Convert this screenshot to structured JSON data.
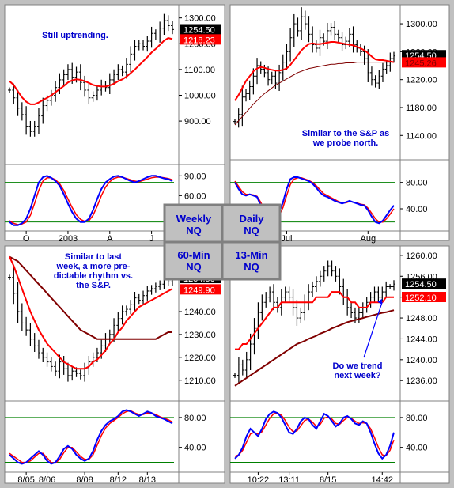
{
  "chart_data": [
    {
      "type": "line",
      "panel": "weekly",
      "title": "Weekly NQ",
      "annotation": "Still uptrending.",
      "price_ticks": [
        900,
        1000,
        1100,
        1200,
        1300
      ],
      "price_tick_labels": [
        "900.00",
        "1000.00",
        "1100.00",
        "1200.00",
        "1300.00"
      ],
      "ylim": [
        750,
        1345
      ],
      "current_price": {
        "value": 1254.5,
        "label": "1254.50"
      },
      "ma_price": {
        "value": 1218.23,
        "label": "1218.23"
      },
      "osc_ticks": [
        60,
        90
      ],
      "osc_tick_labels": [
        "60.00",
        "90.00"
      ],
      "osc_ylim": [
        10,
        100
      ],
      "osc_levels": [
        80,
        20
      ],
      "x_labels": [
        "O",
        "2003",
        "A",
        "J"
      ],
      "x_label_index": [
        4,
        14,
        24,
        34
      ],
      "n": 40,
      "close": [
        1020,
        990,
        950,
        925,
        880,
        860,
        880,
        920,
        960,
        980,
        1000,
        1030,
        1060,
        1080,
        1100,
        1070,
        1090,
        1050,
        1020,
        990,
        1000,
        1020,
        1040,
        1030,
        1060,
        1080,
        1100,
        1090,
        1120,
        1160,
        1190,
        1200,
        1190,
        1210,
        1240,
        1230,
        1260,
        1290,
        1270,
        1255
      ],
      "ma": [
        1055,
        1040,
        1015,
        992,
        975,
        965,
        965,
        972,
        982,
        990,
        1000,
        1012,
        1024,
        1036,
        1050,
        1058,
        1062,
        1060,
        1055,
        1048,
        1040,
        1036,
        1034,
        1034,
        1038,
        1045,
        1055,
        1062,
        1072,
        1086,
        1100,
        1116,
        1132,
        1148,
        1166,
        1180,
        1196,
        1212,
        1222,
        1218
      ],
      "k": [
        20,
        15,
        15,
        18,
        25,
        40,
        60,
        80,
        88,
        90,
        87,
        82,
        75,
        62,
        48,
        35,
        25,
        20,
        20,
        25,
        38,
        55,
        70,
        80,
        85,
        89,
        90,
        88,
        85,
        82,
        80,
        82,
        85,
        88,
        90,
        90,
        88,
        86,
        85,
        82
      ],
      "d": [
        22,
        18,
        16,
        17,
        20,
        30,
        48,
        68,
        82,
        87,
        87,
        84,
        78,
        68,
        55,
        42,
        31,
        24,
        21,
        22,
        30,
        44,
        60,
        73,
        81,
        86,
        88,
        88,
        86,
        84,
        82,
        81,
        83,
        85,
        87,
        88,
        88,
        87,
        86,
        84
      ]
    },
    {
      "type": "line",
      "panel": "daily",
      "title": "Daily NQ",
      "annotation_lines": [
        "Similar to the S&P as",
        "we probe north."
      ],
      "price_ticks": [
        1140,
        1180,
        1220,
        1260,
        1300
      ],
      "price_tick_labels": [
        "1140.00",
        "1180.00",
        "1220.00",
        "1260.00",
        "1300.00"
      ],
      "ylim": [
        1112,
        1325
      ],
      "current_price": {
        "value": 1254.5,
        "label": "1254.50"
      },
      "ma_price": {
        "value": 1245.26,
        "label": "1245.26"
      },
      "osc_ticks": [
        40,
        80
      ],
      "osc_tick_labels": [
        "40.00",
        "80.00"
      ],
      "osc_ylim": [
        10,
        100
      ],
      "osc_levels": [
        80,
        20
      ],
      "x_labels": [
        "Jul",
        "Aug"
      ],
      "x_label_index": [
        14,
        36
      ],
      "n": 44,
      "close": [
        1160,
        1170,
        1195,
        1200,
        1210,
        1225,
        1240,
        1235,
        1230,
        1220,
        1225,
        1215,
        1230,
        1245,
        1260,
        1280,
        1300,
        1290,
        1310,
        1300,
        1285,
        1270,
        1265,
        1280,
        1275,
        1290,
        1295,
        1285,
        1280,
        1270,
        1275,
        1285,
        1270,
        1265,
        1260,
        1250,
        1230,
        1220,
        1215,
        1225,
        1235,
        1240,
        1250,
        1254
      ],
      "ma": [
        1190,
        1198,
        1208,
        1218,
        1225,
        1232,
        1236,
        1238,
        1237,
        1235,
        1234,
        1233,
        1233,
        1234,
        1236,
        1241,
        1248,
        1255,
        1262,
        1267,
        1271,
        1272,
        1271,
        1271,
        1272,
        1273,
        1274,
        1274,
        1273,
        1272,
        1271,
        1270,
        1269,
        1267,
        1265,
        1262,
        1258,
        1253,
        1249,
        1248,
        1248,
        1247,
        1246,
        1245
      ],
      "ma_long": [
        1155,
        1161,
        1167,
        1173,
        1179,
        1185,
        1190,
        1195,
        1200,
        1204,
        1208,
        1212,
        1215,
        1218,
        1221,
        1224,
        1227,
        1230,
        1232,
        1234,
        1236,
        1237,
        1238,
        1239,
        1240,
        1241,
        1242,
        1242,
        1243,
        1243,
        1244,
        1244,
        1244,
        1245,
        1245,
        1245,
        1245,
        1245,
        1245,
        1245,
        1245,
        1245,
        1245,
        1245
      ],
      "k": [
        80,
        70,
        62,
        60,
        62,
        60,
        58,
        45,
        32,
        25,
        22,
        25,
        35,
        50,
        70,
        85,
        88,
        88,
        86,
        84,
        82,
        78,
        72,
        65,
        60,
        58,
        55,
        52,
        50,
        48,
        50,
        52,
        50,
        48,
        46,
        45,
        38,
        28,
        20,
        18,
        22,
        30,
        38,
        45
      ],
      "d": [
        82,
        74,
        66,
        62,
        62,
        61,
        59,
        50,
        38,
        30,
        25,
        24,
        30,
        42,
        60,
        77,
        85,
        87,
        87,
        85,
        83,
        80,
        75,
        69,
        63,
        60,
        57,
        54,
        51,
        49,
        49,
        51,
        50,
        49,
        47,
        46,
        41,
        33,
        25,
        20,
        20,
        25,
        32,
        40
      ]
    },
    {
      "type": "line",
      "panel": "60-min",
      "title": "60-Min NQ",
      "annotation_lines": [
        "Similar to last",
        "week, a more pre-",
        "dictable rhythm vs.",
        "the S&P."
      ],
      "price_ticks": [
        1210,
        1220,
        1230,
        1240
      ],
      "price_tick_labels": [
        "1210.00",
        "1220.00",
        "1230.00",
        "1240.00"
      ],
      "ylim": [
        1203,
        1268
      ],
      "current_price": {
        "value": 1254.5,
        "label": "1254.50"
      },
      "ma_price": {
        "value": 1249.9,
        "label": "1249.90"
      },
      "osc_ticks": [
        40,
        80
      ],
      "osc_tick_labels": [
        "40.00",
        "80.00"
      ],
      "osc_ylim": [
        10,
        100
      ],
      "osc_levels": [
        80,
        20
      ],
      "x_labels": [
        "8/05",
        "8/06",
        "8/08",
        "8/12",
        "8/13"
      ],
      "x_label_index": [
        4,
        9,
        18,
        26,
        33
      ],
      "n": 40,
      "close": [
        1255,
        1248,
        1240,
        1235,
        1232,
        1228,
        1225,
        1222,
        1220,
        1218,
        1216,
        1214,
        1218,
        1215,
        1212,
        1214,
        1213,
        1212,
        1215,
        1218,
        1220,
        1222,
        1225,
        1228,
        1230,
        1234,
        1237,
        1240,
        1241,
        1243,
        1246,
        1245,
        1247,
        1249,
        1250,
        1251,
        1252,
        1254,
        1253,
        1254
      ],
      "ma": [
        1264,
        1260,
        1255,
        1250,
        1245,
        1240,
        1236,
        1232,
        1229,
        1226,
        1224,
        1222,
        1220,
        1218,
        1217,
        1216,
        1215,
        1215,
        1215,
        1216,
        1218,
        1219,
        1221,
        1223,
        1226,
        1228,
        1231,
        1233,
        1236,
        1238,
        1240,
        1242,
        1243,
        1244,
        1245,
        1246,
        1247,
        1248,
        1249,
        1250
      ],
      "ma_long": [
        1264,
        1263,
        1262,
        1260,
        1258,
        1256,
        1254,
        1252,
        1250,
        1248,
        1246,
        1244,
        1242,
        1240,
        1238,
        1236,
        1234,
        1232,
        1231,
        1230,
        1229,
        1228,
        1228,
        1228,
        1228,
        1228,
        1228,
        1228,
        1228,
        1228,
        1228,
        1228,
        1228,
        1228,
        1228,
        1228,
        1229,
        1230,
        1231,
        1231
      ],
      "k": [
        30,
        25,
        20,
        18,
        20,
        25,
        30,
        35,
        30,
        22,
        18,
        20,
        28,
        38,
        42,
        38,
        30,
        25,
        22,
        25,
        35,
        50,
        62,
        70,
        75,
        78,
        82,
        88,
        90,
        88,
        85,
        82,
        85,
        88,
        86,
        82,
        80,
        78,
        75,
        72
      ],
      "d": [
        32,
        28,
        24,
        20,
        20,
        22,
        27,
        32,
        32,
        26,
        20,
        19,
        24,
        33,
        40,
        40,
        34,
        28,
        24,
        24,
        30,
        43,
        56,
        66,
        72,
        76,
        80,
        85,
        88,
        89,
        86,
        84,
        84,
        86,
        86,
        84,
        81,
        79,
        77,
        74
      ]
    },
    {
      "type": "line",
      "panel": "13-min",
      "title": "13-Min NQ",
      "annotation_lines": [
        "Do we trend",
        "next week?"
      ],
      "price_ticks": [
        1236,
        1240,
        1244,
        1248,
        1252,
        1256,
        1260
      ],
      "price_tick_labels": [
        "1236.00",
        "1240.00",
        "1244.00",
        "1248.00",
        "1252.00",
        "1256.00",
        "1260.00"
      ],
      "ylim": [
        1233,
        1261.5
      ],
      "current_price": {
        "value": 1254.5,
        "label": "1254.50"
      },
      "ma_price": {
        "value": 1252.1,
        "label": "1252.10"
      },
      "osc_ticks": [
        40,
        80
      ],
      "osc_tick_labels": [
        "40.00",
        "80.00"
      ],
      "osc_ylim": [
        10,
        100
      ],
      "osc_levels": [
        80,
        20
      ],
      "x_labels": [
        "10:22",
        "13:11",
        "8/15",
        "14:42"
      ],
      "x_label_index": [
        6,
        14,
        24,
        38
      ],
      "n": 42,
      "close": [
        1237,
        1239,
        1238,
        1240,
        1243,
        1246,
        1249,
        1251,
        1252,
        1253,
        1251,
        1250,
        1252,
        1253,
        1252,
        1250,
        1248,
        1249,
        1251,
        1253,
        1254,
        1255,
        1256,
        1257,
        1258,
        1257,
        1256,
        1254,
        1252,
        1250,
        1249,
        1248,
        1249,
        1250,
        1251,
        1252,
        1253,
        1252,
        1253,
        1254,
        1254,
        1254.5
      ],
      "ma": [
        1242,
        1242,
        1243,
        1243,
        1244,
        1245,
        1246,
        1247,
        1248,
        1249,
        1250,
        1250,
        1251,
        1251,
        1251,
        1251,
        1251,
        1251,
        1251,
        1251,
        1251,
        1252,
        1252,
        1252,
        1252,
        1253,
        1253,
        1253,
        1252,
        1252,
        1251,
        1251,
        1250,
        1250,
        1250,
        1251,
        1251,
        1251,
        1251,
        1252,
        1252,
        1252
      ],
      "ma_long": [
        1235,
        1235.5,
        1236,
        1236.5,
        1237,
        1237.5,
        1238,
        1238.5,
        1239,
        1239.5,
        1240,
        1240.5,
        1241,
        1241.5,
        1242,
        1242.5,
        1243,
        1243.3,
        1243.6,
        1244,
        1244.3,
        1244.6,
        1245,
        1245.3,
        1245.6,
        1246,
        1246.3,
        1246.6,
        1246.9,
        1247.2,
        1247.4,
        1247.6,
        1247.8,
        1248,
        1248.2,
        1248.4,
        1248.6,
        1248.8,
        1249,
        1249.1,
        1249.3,
        1249.5
      ],
      "k": [
        25,
        30,
        40,
        55,
        65,
        60,
        55,
        65,
        78,
        85,
        88,
        86,
        80,
        70,
        60,
        58,
        65,
        75,
        80,
        78,
        70,
        65,
        75,
        85,
        82,
        75,
        68,
        72,
        80,
        82,
        78,
        72,
        70,
        75,
        72,
        60,
        45,
        32,
        25,
        30,
        42,
        60
      ],
      "d": [
        28,
        30,
        36,
        47,
        58,
        60,
        58,
        61,
        70,
        79,
        85,
        86,
        83,
        76,
        67,
        61,
        62,
        69,
        76,
        78,
        74,
        68,
        71,
        79,
        81,
        78,
        72,
        71,
        76,
        80,
        79,
        75,
        72,
        73,
        72,
        65,
        53,
        40,
        30,
        29,
        36,
        50
      ]
    }
  ],
  "center_labels": {
    "weekly": [
      "Weekly",
      "NQ"
    ],
    "daily": [
      "Daily",
      "NQ"
    ],
    "sixty": [
      "60-Min",
      "NQ"
    ],
    "thirteen": [
      "13-Min",
      "NQ"
    ]
  },
  "colors": {
    "price_bar": "#000000",
    "ma_red": "#ff0000",
    "ma_dark": "#800000",
    "osc_k": "#0000ff",
    "osc_d": "#ff0000",
    "osc_level": "#008000",
    "annotation": "#0000cc",
    "current_tag": "#000000",
    "ma_tag": "#ff0000",
    "arrow": "#0000ff"
  }
}
